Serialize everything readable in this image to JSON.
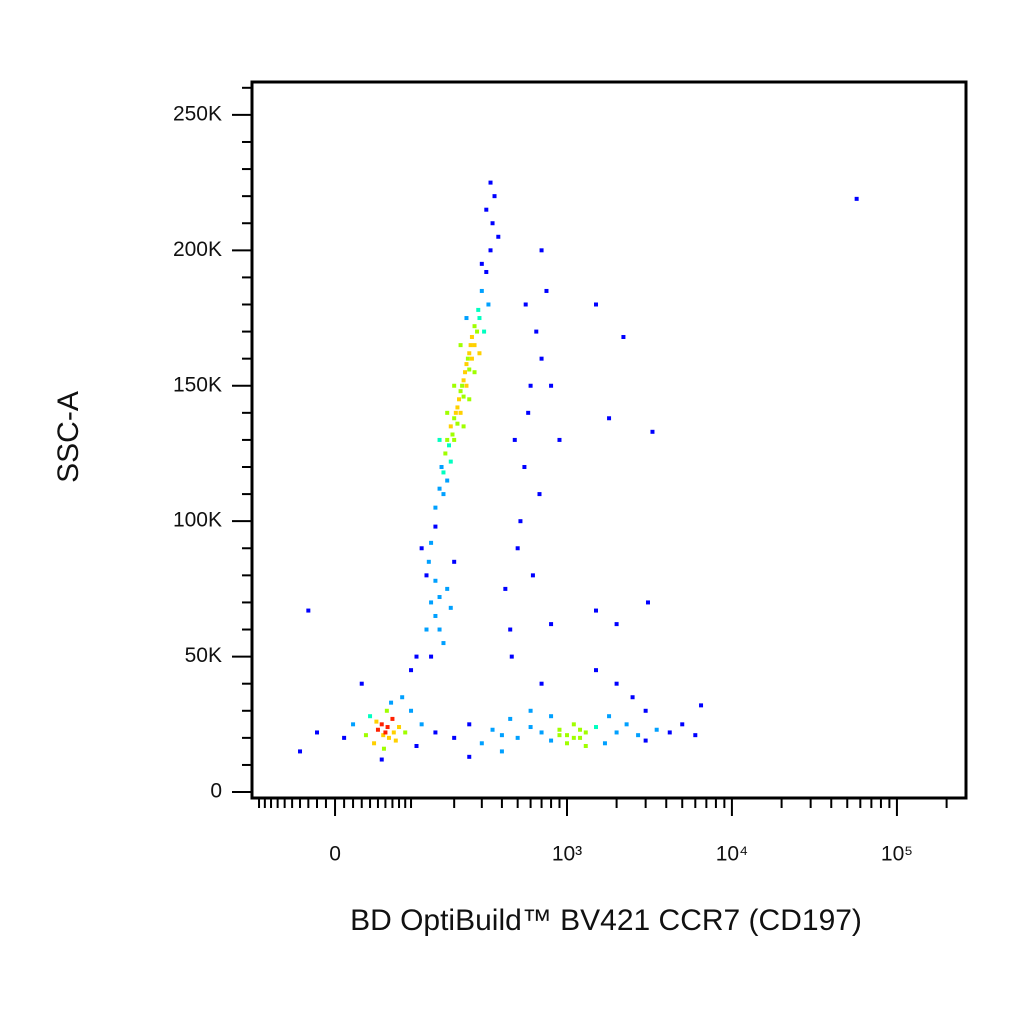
{
  "chart_data": {
    "type": "scatter",
    "xlabel": "BD OptiBuild™  BV421 CCR7 (CD197)",
    "ylabel": "SSC-A",
    "xscale": "biexponential",
    "xlim": [
      -113,
      262144
    ],
    "ylim": [
      -2200,
      262144
    ],
    "xticks": [
      0,
      {
        "value": 1000,
        "label": "10³"
      },
      {
        "value": 10000,
        "label": "10⁴"
      },
      {
        "value": 100000,
        "label": "10⁵"
      }
    ],
    "xminorticks": [
      -100,
      -90,
      -80,
      -70,
      -60,
      -50,
      -40,
      -30,
      -20,
      -10,
      10,
      20,
      30,
      40,
      50,
      60,
      70,
      80,
      90,
      100,
      200,
      300,
      400,
      500,
      600,
      700,
      800,
      900,
      2000,
      3000,
      4000,
      5000,
      6000,
      7000,
      8000,
      9000,
      20000,
      30000,
      40000,
      50000,
      60000,
      70000,
      80000,
      90000,
      200000
    ],
    "yticks": [
      0,
      {
        "value": 50000,
        "label": "50K"
      },
      {
        "value": 100000,
        "label": "100K"
      },
      {
        "value": 150000,
        "label": "150K"
      },
      {
        "value": 200000,
        "label": "200K"
      },
      {
        "value": 250000,
        "label": "250K"
      }
    ],
    "yminorticks": [
      10000,
      20000,
      30000,
      40000,
      60000,
      70000,
      80000,
      90000,
      110000,
      120000,
      130000,
      140000,
      160000,
      170000,
      180000,
      190000,
      210000,
      220000,
      230000,
      240000,
      260000
    ],
    "colormap": [
      "#0000ff",
      "#00a0ff",
      "#00ffc0",
      "#a0ff00",
      "#ffd000",
      "#ff2000"
    ],
    "x": [
      150,
      160,
      170,
      175,
      180,
      190,
      200,
      210,
      220,
      230,
      240,
      250,
      260,
      270,
      285,
      300,
      320,
      340,
      165,
      185,
      195,
      205,
      215,
      225,
      235,
      245,
      255,
      190,
      200,
      210,
      220,
      230,
      240,
      250,
      260,
      270,
      280,
      290,
      150,
      140,
      135,
      170,
      180,
      230,
      250,
      270,
      290,
      310,
      330,
      350,
      360,
      340,
      320,
      380,
      300,
      200,
      180,
      160,
      220,
      240,
      120,
      130,
      140,
      150,
      160,
      170,
      130,
      110,
      180,
      200,
      100,
      140,
      160,
      190,
      150,
      450,
      500,
      550,
      600,
      650,
      700,
      480,
      520,
      580,
      620,
      700,
      750,
      800,
      420,
      680,
      560,
      900,
      460,
      1500,
      2200,
      3300,
      1800,
      1500,
      3100,
      57000,
      800,
      2000,
      -30,
      60,
      55,
      65,
      50,
      70,
      45,
      80,
      40,
      75,
      62,
      35,
      90,
      58,
      68,
      20,
      100,
      10,
      -20,
      -40,
      110,
      85,
      30,
      55,
      120,
      48,
      72,
      63,
      57,
      150,
      200,
      250,
      300,
      350,
      400,
      450,
      500,
      600,
      700,
      800,
      900,
      1000,
      1100,
      1200,
      1300,
      1500,
      1700,
      2000,
      2300,
      2700,
      3000,
      3500,
      4200,
      5000,
      6000,
      6500,
      800,
      1000,
      1200,
      900,
      1100,
      600,
      400,
      250,
      2000,
      2500,
      1500,
      700,
      3000,
      1800,
      1300
    ],
    "values": [
      105000,
      112000,
      118000,
      125000,
      130000,
      135000,
      138000,
      142000,
      148000,
      152000,
      158000,
      162000,
      168000,
      172000,
      178000,
      185000,
      192000,
      200000,
      120000,
      128000,
      132000,
      140000,
      145000,
      150000,
      155000,
      160000,
      165000,
      122000,
      130000,
      136000,
      140000,
      146000,
      150000,
      156000,
      160000,
      165000,
      170000,
      175000,
      98000,
      92000,
      85000,
      110000,
      115000,
      135000,
      145000,
      155000,
      162000,
      170000,
      180000,
      210000,
      220000,
      225000,
      215000,
      205000,
      195000,
      150000,
      140000,
      130000,
      165000,
      175000,
      90000,
      80000,
      70000,
      65000,
      60000,
      55000,
      60000,
      50000,
      75000,
      85000,
      45000,
      50000,
      72000,
      68000,
      78000,
      60000,
      90000,
      120000,
      150000,
      170000,
      200000,
      130000,
      100000,
      140000,
      80000,
      160000,
      185000,
      150000,
      75000,
      110000,
      180000,
      130000,
      50000,
      180000,
      168000,
      133000,
      138000,
      67000,
      70000,
      219000,
      62000,
      62000,
      67000,
      22000,
      25000,
      20000,
      23000,
      27000,
      18000,
      24000,
      28000,
      19000,
      30000,
      21000,
      22000,
      16000,
      33000,
      25000,
      30000,
      20000,
      22000,
      15000,
      17000,
      35000,
      40000,
      12000,
      25000,
      26000,
      22000,
      24000,
      21000,
      22000,
      20000,
      25000,
      18000,
      23000,
      21000,
      27000,
      20000,
      24000,
      22000,
      19000,
      23000,
      21000,
      25000,
      20000,
      22000,
      24000,
      18000,
      22000,
      25000,
      21000,
      19000,
      23000,
      22000,
      25000,
      21000,
      32000,
      28000,
      18000,
      23000,
      21000,
      20000,
      30000,
      15000,
      13000,
      40000,
      35000,
      45000,
      40000,
      30000,
      28000,
      17000
    ]
  }
}
